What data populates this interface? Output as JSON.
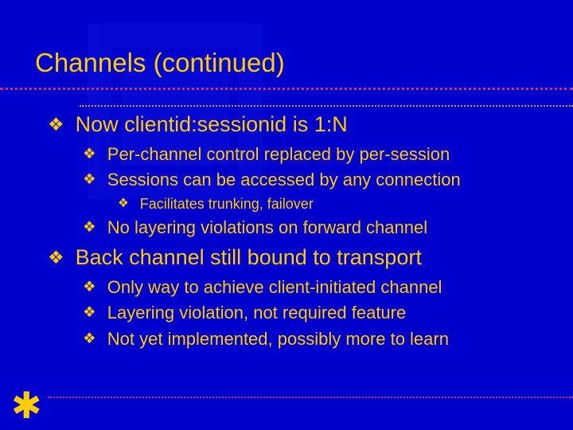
{
  "colors": {
    "background": "#0000cc",
    "text": "#ffcc00",
    "rule_outer": "#cc3366",
    "rule_inner": "#cc9933",
    "watermark": "#0a10d8"
  },
  "title": "Channels (continued)",
  "bullet_glyph": "❖",
  "corner_glyph": "✱",
  "typography": {
    "title_fontsize_pt": 25,
    "l1_fontsize_pt": 20,
    "l2_fontsize_pt": 17,
    "l3_fontsize_pt": 14,
    "font_family": "Arial"
  },
  "outline": [
    {
      "text": "Now clientid:sessionid is 1:N",
      "children": [
        {
          "text": "Per-channel control replaced by per-session"
        },
        {
          "text": "Sessions can be accessed by any connection",
          "children": [
            {
              "text": "Facilitates trunking, failover"
            }
          ]
        },
        {
          "text": "No layering violations on forward channel"
        }
      ]
    },
    {
      "text": "Back channel still bound to transport",
      "children": [
        {
          "text": "Only way to achieve client-initiated channel"
        },
        {
          "text": "Layering violation, not required feature"
        },
        {
          "text": "Not yet implemented, possibly more to learn"
        }
      ]
    }
  ]
}
